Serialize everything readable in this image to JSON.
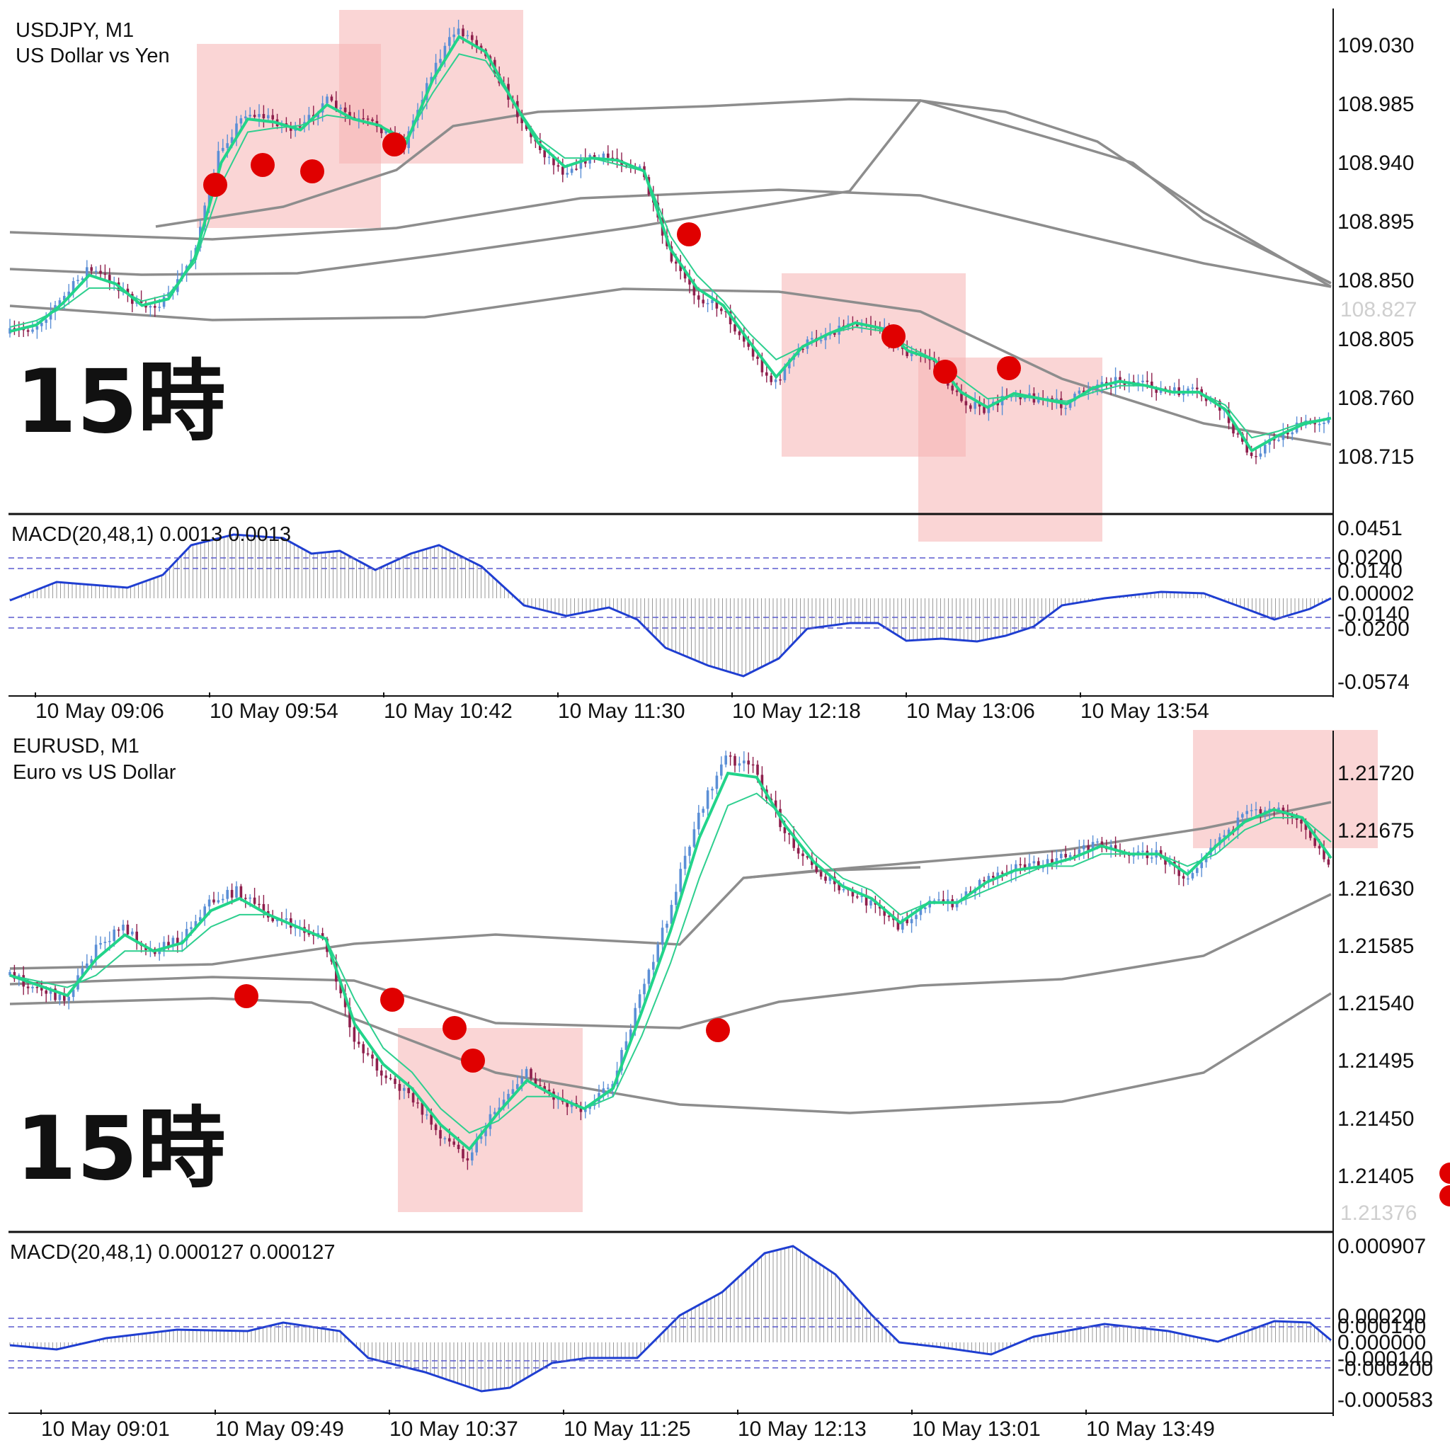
{
  "charts": [
    {
      "symbol_line": "USDJPY, M1",
      "description_line": "US Dollar vs Yen",
      "overlay_label": "15時",
      "price_ticks": [
        "109.030",
        "108.985",
        "108.940",
        "108.895",
        "108.850",
        "108.805",
        "108.760",
        "108.715"
      ],
      "current_price_ghost": "108.827",
      "indicator_label": "MACD(20,48,1) 0.0013 0.0013",
      "indicator_ticks": [
        "0.0451",
        "0.0200",
        "0.0140",
        "0.00002",
        "-0.0140",
        "-0.0200",
        "-0.0574"
      ],
      "time_ticks": [
        "10 May 09:06",
        "10 May 09:54",
        "10 May 10:42",
        "10 May 11:30",
        "10 May 12:18",
        "10 May 13:06",
        "10 May 13:54"
      ],
      "colors": {
        "bull": "#5b8fd6",
        "bear": "#8e1f4c",
        "ma_fast": "#22d48a",
        "band": "#8d8d8d",
        "macd": "#1f3ed1",
        "marker": "#e00000",
        "highlight": "#f6b3b3"
      }
    },
    {
      "symbol_line": "EURUSD, M1",
      "description_line": "Euro vs US Dollar",
      "overlay_label": "15時",
      "price_ticks": [
        "1.21720",
        "1.21675",
        "1.21630",
        "1.21585",
        "1.21540",
        "1.21495",
        "1.21450",
        "1.21405"
      ],
      "current_price_ghost": "1.21376",
      "indicator_label": "MACD(20,48,1) 0.000127 0.000127",
      "indicator_ticks": [
        "0.000907",
        "0.000200",
        "0.000140",
        "0.000000",
        "-0.000140",
        "-0.000200",
        "-0.000583"
      ],
      "time_ticks": [
        "10 May 09:01",
        "10 May 09:49",
        "10 May 10:37",
        "10 May 11:25",
        "10 May 12:13",
        "10 May 13:01",
        "10 May 13:49"
      ],
      "colors": {
        "bull": "#5b8fd6",
        "bear": "#8e1f4c",
        "ma_fast": "#22d48a",
        "band": "#8d8d8d",
        "macd": "#1f3ed1",
        "marker": "#e00000",
        "highlight": "#f6b3b3"
      }
    }
  ],
  "chart_data": [
    {
      "type": "line",
      "title": "USDJPY, M1",
      "ylim": [
        108.68,
        109.06
      ],
      "time_labels": [
        "10 May 09:06",
        "10 May 09:54",
        "10 May 10:42",
        "10 May 11:30",
        "10 May 12:18",
        "10 May 13:06",
        "10 May 13:54"
      ],
      "series": [
        {
          "values": [
            108.81,
            108.815,
            108.835,
            108.86,
            108.85,
            108.83,
            108.835,
            108.87,
            108.95,
            108.98,
            108.975,
            108.965,
            108.99,
            108.975,
            108.97,
            108.955,
            109.01,
            109.045,
            109.03,
            108.99,
            108.955,
            108.935,
            108.945,
            108.945,
            108.935,
            108.87,
            108.84,
            108.83,
            108.8,
            108.77,
            108.8,
            108.81,
            108.82,
            108.815,
            108.795,
            108.79,
            108.76,
            108.75,
            108.765,
            108.76,
            108.755,
            108.77,
            108.775,
            108.77,
            108.765,
            108.765,
            108.75,
            108.715,
            108.73,
            108.74,
            108.745
          ]
        },
        {
          "name": "MA",
          "values": [
            108.815,
            108.82,
            108.83,
            108.845,
            108.845,
            108.835,
            108.84,
            108.865,
            108.925,
            108.965,
            108.968,
            108.97,
            108.978,
            108.975,
            108.97,
            108.96,
            108.995,
            109.025,
            109.02,
            108.99,
            108.96,
            108.945,
            108.945,
            108.94,
            108.935,
            108.885,
            108.855,
            108.835,
            108.81,
            108.79,
            108.8,
            108.81,
            108.815,
            108.812,
            108.8,
            108.79,
            108.775,
            108.76,
            108.762,
            108.76,
            108.758,
            108.765,
            108.77,
            108.77,
            108.765,
            108.765,
            108.755,
            108.73,
            108.735,
            108.742,
            108.745
          ]
        }
      ]
    },
    {
      "type": "line",
      "title": "EURUSD, M1",
      "ylim": [
        1.2135,
        1.2175
      ],
      "time_labels": [
        "10 May 09:01",
        "10 May 09:49",
        "10 May 10:37",
        "10 May 11:25",
        "10 May 12:13",
        "10 May 13:01",
        "10 May 13:49"
      ],
      "series": [
        {
          "values": [
            1.2155,
            1.2154,
            1.2153,
            1.2157,
            1.2159,
            1.2157,
            1.2158,
            1.2161,
            1.2162,
            1.216,
            1.2159,
            1.2158,
            1.215,
            1.2147,
            1.2145,
            1.2142,
            1.214,
            1.2144,
            1.2147,
            1.2145,
            1.2144,
            1.2146,
            1.2153,
            1.216,
            1.2168,
            1.2173,
            1.2172,
            1.2167,
            1.2164,
            1.2162,
            1.2161,
            1.2159,
            1.2161,
            1.2161,
            1.2163,
            1.2164,
            1.2164,
            1.2165,
            1.2166,
            1.2165,
            1.2165,
            1.2163,
            1.2166,
            1.2168,
            1.2169,
            1.2168,
            1.2164
          ]
        },
        {
          "name": "MA",
          "values": [
            1.2155,
            1.21545,
            1.2154,
            1.2155,
            1.2157,
            1.2157,
            1.2157,
            1.2159,
            1.216,
            1.216,
            1.2159,
            1.2158,
            1.2153,
            1.2149,
            1.2147,
            1.2144,
            1.2142,
            1.2143,
            1.2145,
            1.2145,
            1.2144,
            1.2145,
            1.215,
            1.2156,
            1.2163,
            1.2169,
            1.217,
            1.2168,
            1.2165,
            1.2163,
            1.2162,
            1.216,
            1.2161,
            1.2161,
            1.2162,
            1.2163,
            1.2164,
            1.2164,
            1.2165,
            1.2165,
            1.2165,
            1.2164,
            1.2165,
            1.2167,
            1.2168,
            1.2168,
            1.2166
          ]
        }
      ]
    }
  ]
}
